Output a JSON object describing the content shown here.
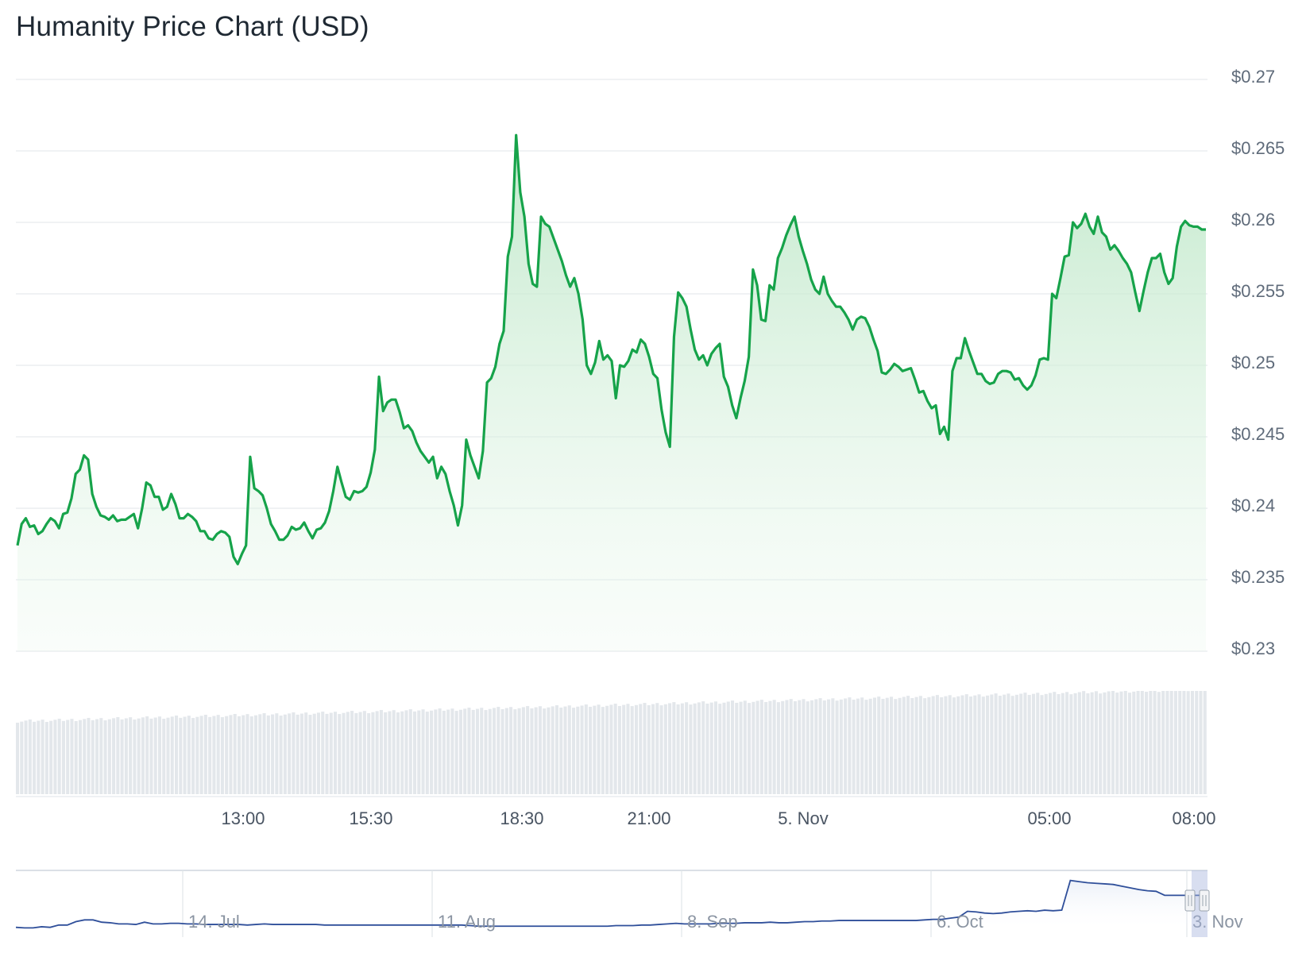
{
  "title": "Humanity Price Chart (USD)",
  "colors": {
    "line": "#16a34a",
    "area_top": "#bfe8c9",
    "volume": "#e3e7eb",
    "navigator_line": "#2f4f9a",
    "grid": "#e6e9ed"
  },
  "chart_data": {
    "type": "area",
    "title": "Humanity Price Chart (USD)",
    "y_axis": {
      "ticks": [
        "$0.23",
        "$0.235",
        "$0.24",
        "$0.245",
        "$0.25",
        "$0.255",
        "$0.26",
        "$0.265",
        "$0.27"
      ],
      "values": [
        0.23,
        0.235,
        0.24,
        0.245,
        0.25,
        0.255,
        0.26,
        0.265,
        0.27
      ],
      "ylim": [
        0.23,
        0.27
      ],
      "position": "right"
    },
    "x_axis": {
      "ticks": [
        "13:00",
        "15:30",
        "18:30",
        "21:00",
        "5. Nov",
        "05:00",
        "08:00"
      ]
    },
    "series": [
      {
        "values": [
          0.2374,
          0.2389,
          0.2393,
          0.2387,
          0.2388,
          0.2382,
          0.2384,
          0.2389,
          0.2393,
          0.2391,
          0.2386,
          0.2396,
          0.2397,
          0.2407,
          0.2424,
          0.2427,
          0.2437,
          0.2434,
          0.241,
          0.2401,
          0.2395,
          0.2394,
          0.2392,
          0.2395,
          0.2391,
          0.2392,
          0.2392,
          0.2394,
          0.2396,
          0.2386,
          0.24,
          0.2418,
          0.2416,
          0.2408,
          0.2408,
          0.2399,
          0.2401,
          0.241,
          0.2403,
          0.2393,
          0.2393,
          0.2396,
          0.2394,
          0.2391,
          0.2384,
          0.2384,
          0.2379,
          0.2378,
          0.2382,
          0.2384,
          0.2383,
          0.238,
          0.2366,
          0.2361,
          0.2368,
          0.2374,
          0.2436,
          0.2414,
          0.2412,
          0.2409,
          0.24,
          0.2389,
          0.2384,
          0.2378,
          0.2378,
          0.2381,
          0.2387,
          0.2385,
          0.2386,
          0.239,
          0.2384,
          0.2379,
          0.2385,
          0.2386,
          0.239,
          0.2398,
          0.2412,
          0.2429,
          0.2418,
          0.2408,
          0.2406,
          0.2412,
          0.2411,
          0.2412,
          0.2415,
          0.2425,
          0.2441,
          0.2492,
          0.2468,
          0.2474,
          0.2476,
          0.2476,
          0.2467,
          0.2456,
          0.2458,
          0.2454,
          0.2446,
          0.244,
          0.2436,
          0.2432,
          0.2436,
          0.2421,
          0.2429,
          0.2424,
          0.2412,
          0.2402,
          0.2388,
          0.2402,
          0.2448,
          0.2437,
          0.2429,
          0.2421,
          0.244,
          0.2488,
          0.2491,
          0.2499,
          0.2515,
          0.2524,
          0.2576,
          0.259,
          0.2661,
          0.2621,
          0.2604,
          0.2571,
          0.2557,
          0.2555,
          0.2604,
          0.2599,
          0.2597,
          0.2589,
          0.2581,
          0.2573,
          0.2563,
          0.2555,
          0.2561,
          0.255,
          0.2532,
          0.25,
          0.2494,
          0.2502,
          0.2517,
          0.2504,
          0.2507,
          0.2503,
          0.2477,
          0.25,
          0.2499,
          0.2503,
          0.2511,
          0.2509,
          0.2518,
          0.2515,
          0.2506,
          0.2494,
          0.2491,
          0.2469,
          0.2453,
          0.2443,
          0.252,
          0.2551,
          0.2547,
          0.2541,
          0.2525,
          0.2511,
          0.2504,
          0.2507,
          0.25,
          0.2508,
          0.2512,
          0.2515,
          0.2492,
          0.2485,
          0.2472,
          0.2463,
          0.2477,
          0.2489,
          0.2506,
          0.2567,
          0.2556,
          0.2532,
          0.2531,
          0.2556,
          0.2553,
          0.2575,
          0.2582,
          0.2591,
          0.2598,
          0.2604,
          0.259,
          0.258,
          0.2571,
          0.256,
          0.2553,
          0.255,
          0.2562,
          0.255,
          0.2545,
          0.2541,
          0.2541,
          0.2537,
          0.2532,
          0.2525,
          0.2532,
          0.2534,
          0.2533,
          0.2527,
          0.2518,
          0.251,
          0.2495,
          0.2494,
          0.2497,
          0.2501,
          0.2499,
          0.2496,
          0.2497,
          0.2498,
          0.249,
          0.2481,
          0.2482,
          0.2475,
          0.247,
          0.2472,
          0.2452,
          0.2457,
          0.2448,
          0.2496,
          0.2505,
          0.2505,
          0.2519,
          0.251,
          0.2502,
          0.2494,
          0.2494,
          0.2489,
          0.2487,
          0.2488,
          0.2494,
          0.2496,
          0.2496,
          0.2495,
          0.249,
          0.2491,
          0.2486,
          0.2483,
          0.2486,
          0.2493,
          0.2504,
          0.2505,
          0.2504,
          0.255,
          0.2547,
          0.2561,
          0.2576,
          0.2577,
          0.26,
          0.2596,
          0.2599,
          0.2606,
          0.2597,
          0.2592,
          0.2604,
          0.2593,
          0.259,
          0.2581,
          0.2584,
          0.258,
          0.2575,
          0.2571,
          0.2565,
          0.2551,
          0.2538,
          0.2552,
          0.2565,
          0.2575,
          0.2575,
          0.2578,
          0.2565,
          0.2557,
          0.2561,
          0.2583,
          0.2597,
          0.2601,
          0.2598,
          0.2597,
          0.2597,
          0.2595,
          0.2595
        ]
      }
    ],
    "volume": [
      62,
      62,
      62,
      62,
      62,
      62,
      62,
      62,
      62,
      62,
      62,
      62,
      62,
      62,
      62,
      62,
      62,
      62,
      62,
      62,
      62,
      62,
      62,
      62,
      62,
      62,
      62,
      62,
      62,
      62,
      62,
      62,
      62,
      62,
      62,
      62,
      62,
      62,
      62,
      62,
      62,
      62,
      62,
      62,
      62,
      62,
      62,
      62,
      62,
      62,
      62,
      62,
      62,
      62,
      62,
      62,
      62,
      62,
      62,
      62,
      62,
      62,
      62,
      62,
      62,
      62,
      62,
      62,
      62,
      62,
      62,
      62,
      62,
      62,
      62,
      62,
      62,
      62,
      62,
      62,
      62,
      62,
      62,
      62,
      62,
      62,
      62,
      62,
      62,
      62,
      62,
      62,
      62,
      62,
      62,
      62,
      62,
      62,
      62,
      62,
      62,
      62,
      62,
      62,
      62,
      62,
      62,
      62,
      62,
      62,
      62,
      62,
      62,
      62,
      62,
      62,
      62,
      62,
      62,
      62,
      62,
      62,
      62,
      62,
      62,
      62,
      62,
      62,
      62,
      62,
      62,
      62,
      62,
      62,
      62,
      62,
      62,
      62,
      62,
      62,
      62,
      62,
      62,
      62,
      62,
      62,
      62,
      62,
      62,
      62,
      62,
      62,
      62,
      62,
      62,
      62,
      62,
      62,
      62,
      62,
      62,
      62,
      62,
      62,
      62,
      62,
      62,
      62,
      62,
      62,
      62,
      62,
      62,
      62,
      62,
      62,
      62,
      62,
      62,
      62,
      62,
      62,
      62,
      62,
      62,
      62,
      62,
      62,
      62,
      62,
      62,
      62,
      62,
      62,
      62,
      62,
      62,
      62,
      62,
      62,
      62,
      62,
      62,
      62,
      62,
      62,
      62,
      62,
      62,
      62,
      62,
      62,
      62,
      62,
      62,
      62,
      62,
      62,
      62,
      62,
      62,
      62,
      62,
      62,
      62,
      62,
      62,
      62,
      62,
      62,
      62,
      62,
      62,
      62,
      62,
      62,
      62,
      62,
      62,
      62,
      62,
      62,
      62,
      62,
      62,
      62,
      62,
      62,
      62,
      62,
      62,
      62,
      62,
      62,
      62,
      62,
      62,
      62,
      62,
      62,
      62,
      62,
      62,
      62,
      62,
      62,
      62,
      62,
      62,
      62,
      62,
      62,
      62,
      62,
      62,
      62,
      62,
      62,
      62,
      62,
      62,
      62,
      62,
      62,
      62
    ]
  },
  "navigator": {
    "ticks": [
      "14. Jul",
      "11. Aug",
      "8. Sep",
      "6. Oct",
      "3. Nov"
    ],
    "values": [
      0.06,
      0.05,
      0.05,
      0.07,
      0.06,
      0.1,
      0.1,
      0.16,
      0.19,
      0.19,
      0.15,
      0.14,
      0.12,
      0.12,
      0.11,
      0.15,
      0.12,
      0.12,
      0.13,
      0.13,
      0.12,
      0.12,
      0.11,
      0.11,
      0.11,
      0.11,
      0.11,
      0.1,
      0.11,
      0.12,
      0.11,
      0.11,
      0.11,
      0.11,
      0.11,
      0.11,
      0.1,
      0.1,
      0.1,
      0.1,
      0.1,
      0.1,
      0.1,
      0.1,
      0.1,
      0.1,
      0.1,
      0.1,
      0.1,
      0.1,
      0.1,
      0.1,
      0.1,
      0.09,
      0.08,
      0.08,
      0.08,
      0.08,
      0.08,
      0.08,
      0.08,
      0.08,
      0.08,
      0.08,
      0.08,
      0.08,
      0.08,
      0.08,
      0.08,
      0.08,
      0.09,
      0.09,
      0.09,
      0.1,
      0.1,
      0.11,
      0.12,
      0.13,
      0.12,
      0.12,
      0.12,
      0.12,
      0.13,
      0.13,
      0.13,
      0.14,
      0.14,
      0.14,
      0.15,
      0.14,
      0.14,
      0.15,
      0.16,
      0.16,
      0.17,
      0.17,
      0.18,
      0.18,
      0.18,
      0.18,
      0.18,
      0.18,
      0.18,
      0.18,
      0.18,
      0.18,
      0.19,
      0.2,
      0.2,
      0.22,
      0.24,
      0.34,
      0.33,
      0.31,
      0.3,
      0.31,
      0.33,
      0.34,
      0.35,
      0.34,
      0.36,
      0.35,
      0.36,
      0.88,
      0.86,
      0.84,
      0.83,
      0.82,
      0.81,
      0.78,
      0.75,
      0.72,
      0.7,
      0.69,
      0.62,
      0.62,
      0.62,
      0.62,
      0.62,
      0.62
    ]
  }
}
